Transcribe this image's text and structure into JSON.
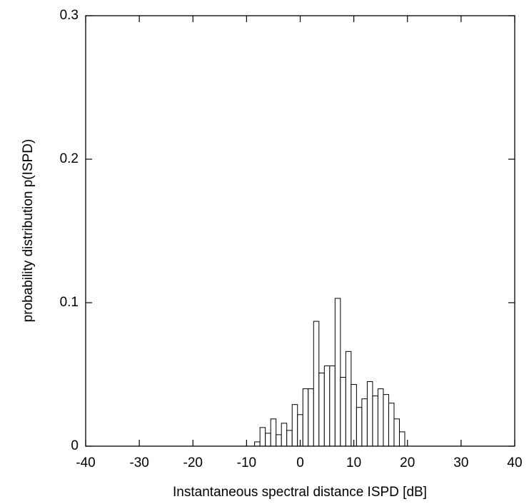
{
  "chart_data": {
    "type": "histogram",
    "xlabel": "Instantaneous spectral distance ISPD [dB]",
    "ylabel": "probability distribution p(ISPD)",
    "bins": [
      -8.5,
      -7.5,
      -6.5,
      -5.5,
      -4.5,
      -3.5,
      -2.5,
      -1.5,
      -0.5,
      0.5,
      1.5,
      2.5,
      3.5,
      4.5,
      5.5,
      6.5,
      7.5,
      8.5,
      9.5,
      10.5,
      11.5,
      12.5,
      13.5,
      14.5,
      15.5,
      16.5,
      17.5,
      18.5,
      19.5
    ],
    "counts": [
      0.003,
      0.013,
      0.009,
      0.019,
      0.008,
      0.016,
      0.011,
      0.029,
      0.022,
      0.04,
      0.04,
      0.087,
      0.051,
      0.056,
      0.056,
      0.103,
      0.048,
      0.066,
      0.043,
      0.027,
      0.033,
      0.045,
      0.035,
      0.04,
      0.036,
      0.03,
      0.019,
      0.01
    ],
    "color": "#ffffff",
    "xlim": [
      -40,
      40
    ],
    "xticks": [
      -40,
      -30,
      -20,
      -10,
      0,
      10,
      20,
      30,
      40
    ],
    "ylim": [
      0,
      0.3
    ],
    "yticks": [
      0,
      0.1,
      0.2,
      0.3
    ]
  }
}
